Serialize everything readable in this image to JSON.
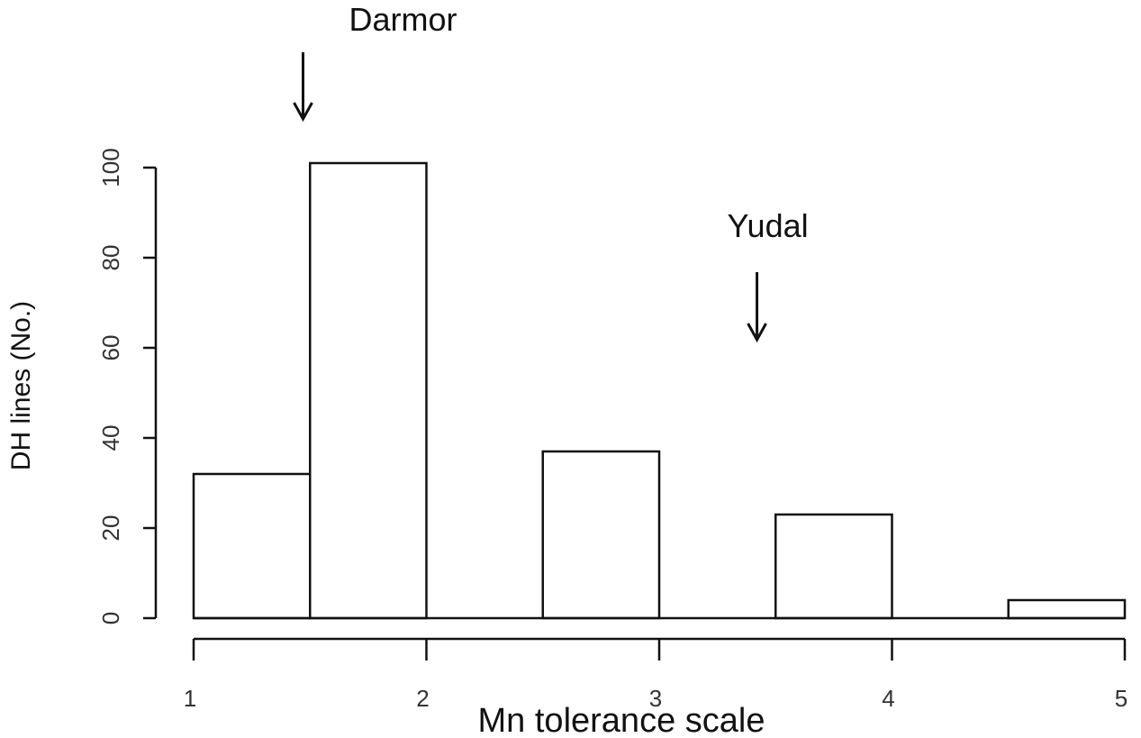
{
  "chart_data": {
    "type": "bar",
    "title": "",
    "xlabel": "Mn tolerance scale",
    "ylabel": "DH lines (No.)",
    "bins": [
      {
        "start": 1.0,
        "end": 1.5,
        "count": 32
      },
      {
        "start": 1.5,
        "end": 2.0,
        "count": 101
      },
      {
        "start": 2.0,
        "end": 2.5,
        "count": 0
      },
      {
        "start": 2.5,
        "end": 3.0,
        "count": 37
      },
      {
        "start": 3.0,
        "end": 3.5,
        "count": 0
      },
      {
        "start": 3.5,
        "end": 4.0,
        "count": 23
      },
      {
        "start": 4.0,
        "end": 4.5,
        "count": 0
      },
      {
        "start": 4.5,
        "end": 5.0,
        "count": 4
      }
    ],
    "xlim": [
      1,
      5
    ],
    "ylim": [
      0,
      100
    ],
    "x_ticks": [
      1,
      2,
      3,
      4,
      5
    ],
    "y_ticks": [
      0,
      20,
      40,
      60,
      80,
      100
    ],
    "grid": false,
    "annotations": [
      {
        "text": "Darmor",
        "x": 1.47,
        "arrow": "down"
      },
      {
        "text": "Yudal",
        "x": 3.42,
        "arrow": "down"
      }
    ]
  }
}
